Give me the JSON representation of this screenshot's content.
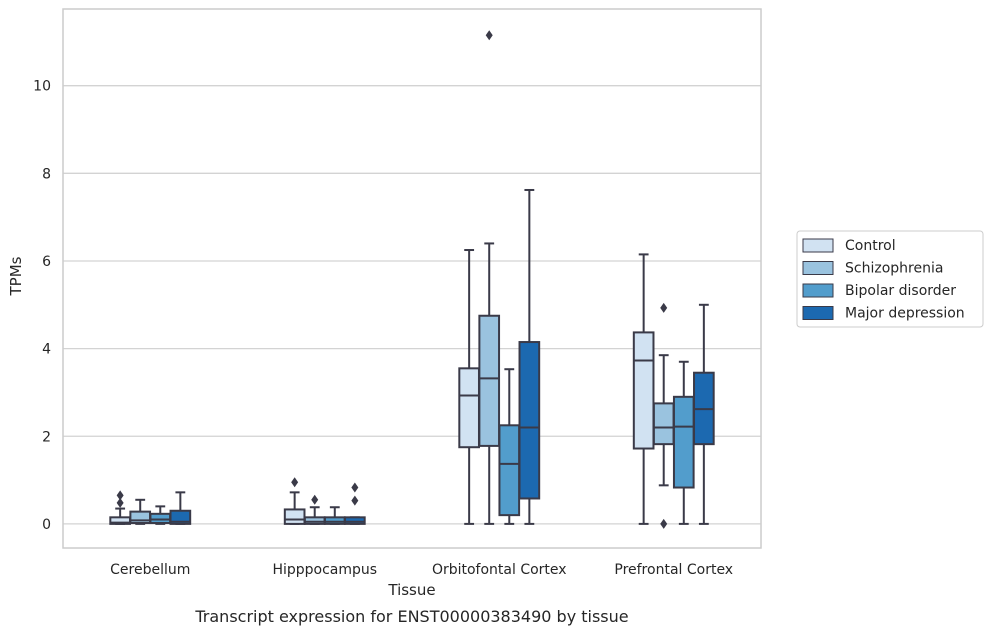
{
  "chart_data": {
    "type": "box",
    "caption": "Transcript expression for ENST00000383490 by tissue",
    "xlabel": "Tissue",
    "ylabel": "TPMs",
    "ylim": [
      -0.55,
      11.75
    ],
    "yticks": [
      0,
      2,
      4,
      6,
      8,
      10
    ],
    "grid": "horizontal",
    "legend_position": "right",
    "categories": [
      "Cerebellum",
      "Hipppocampus",
      "Orbitofontal Cortex",
      "Prefrontal Cortex"
    ],
    "series": [
      {
        "name": "Control",
        "color": "#d1e2f2",
        "boxes": [
          {
            "whisker_low": 0.0,
            "q1": 0.0,
            "median": 0.03,
            "q3": 0.15,
            "whisker_high": 0.35,
            "outliers": [
              0.48,
              0.65
            ]
          },
          {
            "whisker_low": 0.0,
            "q1": 0.0,
            "median": 0.1,
            "q3": 0.33,
            "whisker_high": 0.72,
            "outliers": [
              0.95
            ]
          },
          {
            "whisker_low": 0.0,
            "q1": 1.75,
            "median": 2.93,
            "q3": 3.55,
            "whisker_high": 6.25,
            "outliers": []
          },
          {
            "whisker_low": 0.0,
            "q1": 1.72,
            "median": 3.73,
            "q3": 4.37,
            "whisker_high": 6.15,
            "outliers": []
          }
        ]
      },
      {
        "name": "Schizophrenia",
        "color": "#9ac3df",
        "boxes": [
          {
            "whisker_low": 0.0,
            "q1": 0.02,
            "median": 0.08,
            "q3": 0.28,
            "whisker_high": 0.55,
            "outliers": []
          },
          {
            "whisker_low": 0.0,
            "q1": 0.0,
            "median": 0.05,
            "q3": 0.15,
            "whisker_high": 0.38,
            "outliers": [
              0.55
            ]
          },
          {
            "whisker_low": 0.0,
            "q1": 1.78,
            "median": 3.32,
            "q3": 4.75,
            "whisker_high": 6.4,
            "outliers": [
              11.15
            ]
          },
          {
            "whisker_low": 0.88,
            "q1": 1.82,
            "median": 2.2,
            "q3": 2.75,
            "whisker_high": 3.85,
            "outliers": [
              4.93,
              0.0
            ]
          }
        ]
      },
      {
        "name": "Bipolar disorder",
        "color": "#529dcc",
        "boxes": [
          {
            "whisker_low": 0.0,
            "q1": 0.02,
            "median": 0.1,
            "q3": 0.23,
            "whisker_high": 0.4,
            "outliers": []
          },
          {
            "whisker_low": 0.0,
            "q1": 0.0,
            "median": 0.05,
            "q3": 0.15,
            "whisker_high": 0.38,
            "outliers": []
          },
          {
            "whisker_low": 0.0,
            "q1": 0.2,
            "median": 1.37,
            "q3": 2.25,
            "whisker_high": 3.53,
            "outliers": []
          },
          {
            "whisker_low": 0.0,
            "q1": 0.83,
            "median": 2.22,
            "q3": 2.9,
            "whisker_high": 3.7,
            "outliers": []
          }
        ]
      },
      {
        "name": "Major depression",
        "color": "#1c69b0",
        "boxes": [
          {
            "whisker_low": 0.0,
            "q1": 0.0,
            "median": 0.05,
            "q3": 0.3,
            "whisker_high": 0.72,
            "outliers": []
          },
          {
            "whisker_low": 0.0,
            "q1": 0.0,
            "median": 0.05,
            "q3": 0.15,
            "whisker_high": 0.15,
            "outliers": [
              0.53,
              0.83
            ]
          },
          {
            "whisker_low": 0.0,
            "q1": 0.58,
            "median": 2.2,
            "q3": 4.15,
            "whisker_high": 7.62,
            "outliers": []
          },
          {
            "whisker_low": 0.0,
            "q1": 1.82,
            "median": 2.62,
            "q3": 3.45,
            "whisker_high": 5.0,
            "outliers": []
          }
        ]
      }
    ],
    "colors": {
      "line": "#3a3a48",
      "grid": "#d3d3d3",
      "frame": "#cccccc"
    }
  }
}
